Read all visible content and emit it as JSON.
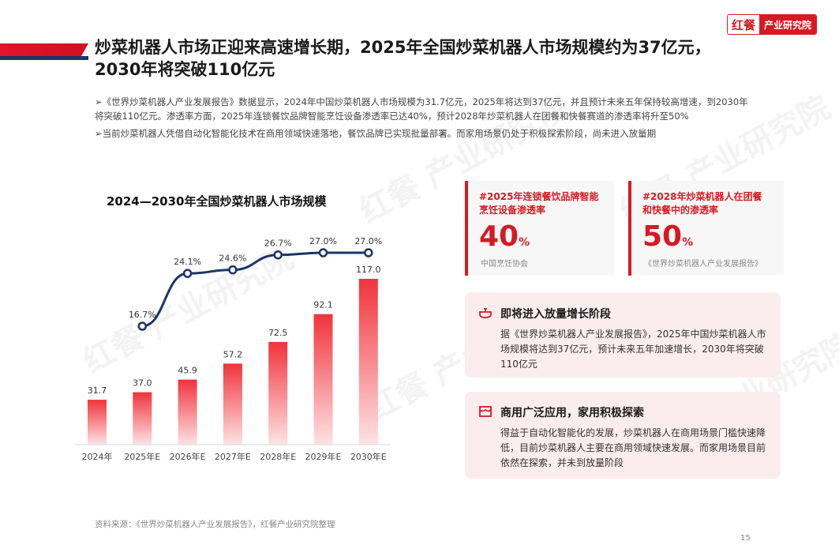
{
  "header": {
    "title": "炒菜机器人市场正迎来高速增长期，2025年全国炒菜机器人市场规模约为37亿元，2030年将突破110亿元",
    "logo_mark": "红餐",
    "logo_text": "产业研究院",
    "accent_red": "#d71a21",
    "accent_navy": "#1d3566"
  },
  "bullets": [
    "《世界炒菜机器人产业发展报告》数据显示，2024年中国炒菜机器人市场规模为31.7亿元，2025年将达到37亿元，并且预计未来五年保持较高增速，到2030年将突破110亿元。渗透率方面，2025年连锁餐饮品牌智能烹饪设备渗透率已达40%，预计2028年炒菜机器人在团餐和快餐赛道的渗透率将升至50%",
    "当前炒菜机器人凭借自动化智能化技术在商用领域快速落地，餐饮品牌已实现批量部署。而家用场景仍处于积极探索阶段，尚未进入放量期"
  ],
  "chart_data": {
    "type": "bar",
    "title": "2024—2030年全国炒菜机器人市场规模",
    "categories": [
      "2024年",
      "2025年E",
      "2026年E",
      "2027年E",
      "2028年E",
      "2029年E",
      "2030年E"
    ],
    "series": [
      {
        "type": "bar",
        "values": [
          31.7,
          37.0,
          45.9,
          57.2,
          72.5,
          92.1,
          117.0
        ],
        "labels": [
          "31.7",
          "37.0",
          "45.9",
          "57.2",
          "72.5",
          "92.1",
          "117.0"
        ]
      },
      {
        "type": "line",
        "values": [
          null,
          16.7,
          24.1,
          24.6,
          26.7,
          27.0,
          27.0
        ],
        "labels": [
          "",
          "16.7%",
          "24.1%",
          "24.6%",
          "26.7%",
          "27.0%",
          "27.0%"
        ]
      }
    ],
    "colors": {
      "bar_bottom": "#fde3e4",
      "bar_top": "#f1333c",
      "line": "#1d3566"
    },
    "grid": false,
    "legend": "none"
  },
  "stats": [
    {
      "head": "#2025年连锁餐饮品牌智能烹饪设备渗透率",
      "value": "40",
      "unit": "%",
      "source": "中国烹饪协会"
    },
    {
      "head": "#2028年炒菜机器人在团餐和快餐中的渗透率",
      "value": "50",
      "unit": "%",
      "source": "《世界炒菜机器人产业发展报告》"
    }
  ],
  "cards": [
    {
      "icon": "cooking-pot-icon",
      "head": "即将进入放量增长阶段",
      "body": "据《世界炒菜机器人产业发展报告》，2025年中国炒菜机器人市场规模将达到37亿元，预计未来五年加速增长，2030年将突破110亿元"
    },
    {
      "icon": "storefront-icon",
      "head": "商用广泛应用，家用积极探索",
      "body": "得益于自动化智能化的发展，炒菜机器人在商用场景门槛快速降低，目前炒菜机器人主要在商用领域快速发展。而家用场景目前依然在探索，并未到放量阶段"
    }
  ],
  "footer": {
    "source": "资料来源：《世界炒菜机器人产业发展报告》，红餐产业研究院整理",
    "page": "15"
  }
}
